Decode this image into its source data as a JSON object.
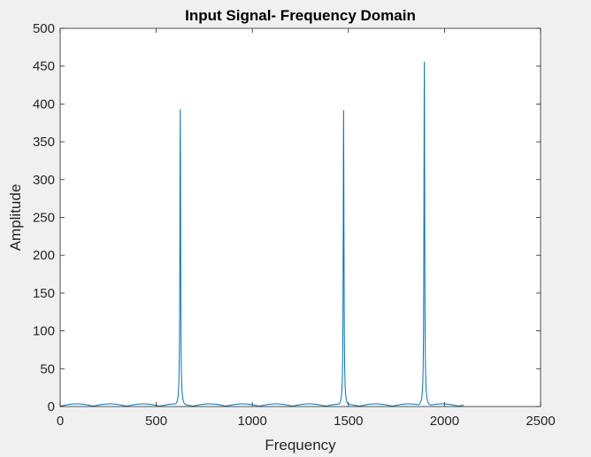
{
  "chart_data": {
    "type": "line",
    "title": "Input Signal- Frequency Domain",
    "xlabel": "Frequency",
    "ylabel": "Amplitude",
    "xlim": [
      0,
      2500
    ],
    "ylim": [
      0,
      500
    ],
    "xticks": [
      0,
      500,
      1000,
      1500,
      2000,
      2500
    ],
    "yticks": [
      0,
      50,
      100,
      150,
      200,
      250,
      300,
      350,
      400,
      450,
      500
    ],
    "grid": false,
    "line_color": "#0072BD",
    "x_end": 2100,
    "peaks": [
      {
        "x": 625,
        "y": 393
      },
      {
        "x": 1475,
        "y": 392
      },
      {
        "x": 1895,
        "y": 456
      }
    ],
    "noise_floor": 3
  }
}
